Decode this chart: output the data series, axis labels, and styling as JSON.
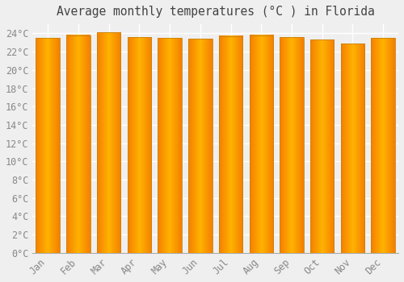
{
  "title": "Average monthly temperatures (°C ) in Florida",
  "months": [
    "Jan",
    "Feb",
    "Mar",
    "Apr",
    "May",
    "Jun",
    "Jul",
    "Aug",
    "Sep",
    "Oct",
    "Nov",
    "Dec"
  ],
  "values": [
    23.5,
    23.8,
    24.1,
    23.6,
    23.5,
    23.4,
    23.7,
    23.8,
    23.6,
    23.3,
    22.9,
    23.5
  ],
  "bar_color_center": "#FFB300",
  "bar_color_edge": "#F57F00",
  "bar_outline_color": "#C8820A",
  "background_color": "#EFEFEF",
  "plot_bg_color": "#EFEFEF",
  "grid_color": "#FFFFFF",
  "ylim": [
    0,
    25
  ],
  "ytick_interval": 2,
  "title_fontsize": 10.5,
  "tick_fontsize": 8.5,
  "font_family": "monospace",
  "label_color": "#888888",
  "title_color": "#444444"
}
